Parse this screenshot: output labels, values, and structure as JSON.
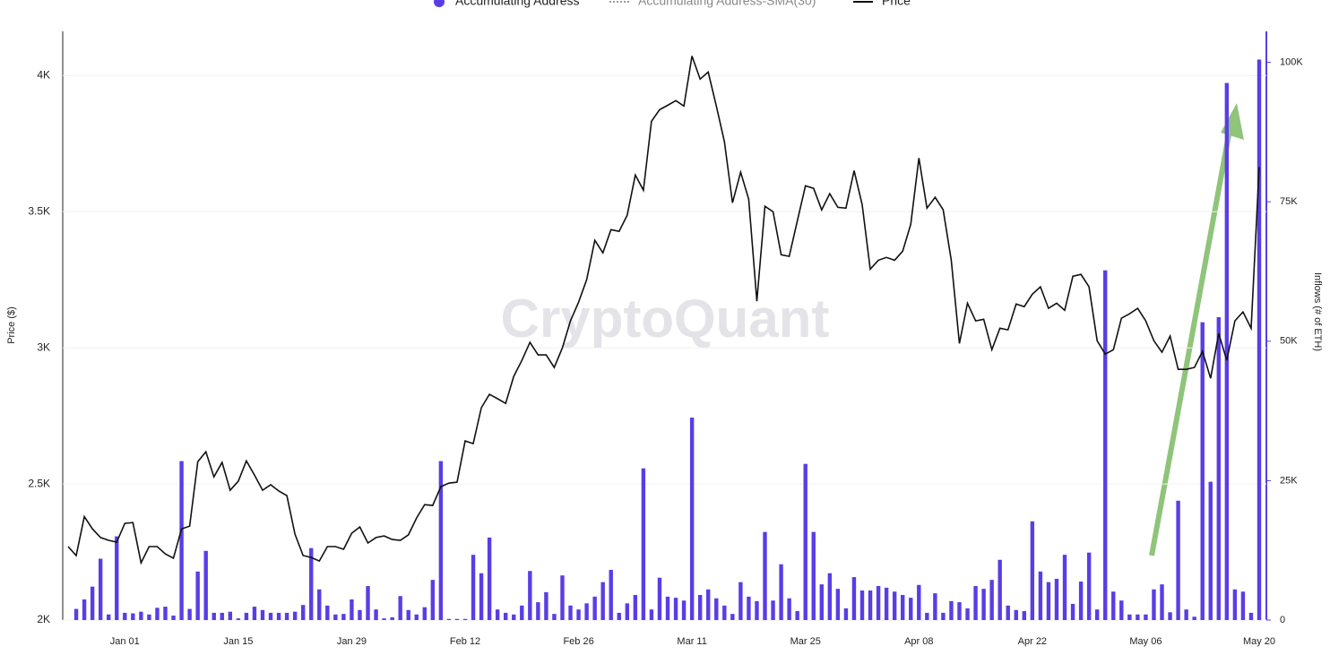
{
  "chart_data": {
    "type": "combo",
    "watermark": "CryptoQuant",
    "y_label": "Price ($)",
    "y2_label": "Inflows (# of ETH)",
    "categories": [
      null,
      null,
      null,
      null,
      null,
      null,
      null,
      "Jan 01",
      null,
      null,
      null,
      null,
      null,
      null,
      null,
      null,
      null,
      null,
      null,
      null,
      null,
      "Jan 15",
      null,
      null,
      null,
      null,
      null,
      null,
      null,
      null,
      null,
      null,
      null,
      null,
      null,
      "Jan 29",
      null,
      null,
      null,
      null,
      null,
      null,
      null,
      null,
      null,
      null,
      null,
      null,
      null,
      "Feb 12",
      null,
      null,
      null,
      null,
      null,
      null,
      null,
      null,
      null,
      null,
      null,
      null,
      null,
      "Feb 26",
      null,
      null,
      null,
      null,
      null,
      null,
      null,
      null,
      null,
      null,
      null,
      null,
      null,
      "Mar 11",
      null,
      null,
      null,
      null,
      null,
      null,
      null,
      null,
      null,
      null,
      null,
      null,
      null,
      "Mar 25",
      null,
      null,
      null,
      null,
      null,
      null,
      null,
      null,
      null,
      null,
      null,
      null,
      null,
      "Apr 08",
      null,
      null,
      null,
      null,
      null,
      null,
      null,
      null,
      null,
      null,
      null,
      null,
      null,
      "Apr 22",
      null,
      null,
      null,
      null,
      null,
      null,
      null,
      null,
      null,
      null,
      null,
      null,
      null,
      "May 06",
      null,
      null,
      null,
      null,
      null,
      null,
      null,
      null,
      null,
      null,
      null,
      null,
      null,
      "May 20"
    ],
    "series": [
      {
        "name": "Accumulating Address",
        "type": "bar",
        "axis": "y2",
        "color": "#5a3de6",
        "values": [
          null,
          2000,
          3700,
          6000,
          11000,
          1000,
          15000,
          1300,
          1200,
          1500,
          1000,
          2200,
          2400,
          800,
          28500,
          2000,
          8700,
          12400,
          1300,
          1300,
          1500,
          300,
          1300,
          2400,
          1800,
          1300,
          1300,
          1300,
          1500,
          2700,
          12900,
          5500,
          2600,
          1000,
          1100,
          3700,
          1800,
          6100,
          1900,
          300,
          500,
          4300,
          1800,
          1000,
          2300,
          7200,
          28500,
          200,
          200,
          200,
          11700,
          8400,
          14800,
          1900,
          1300,
          1000,
          2600,
          8800,
          3200,
          5000,
          1100,
          8000,
          2600,
          1900,
          3000,
          4200,
          6800,
          9000,
          1300,
          3000,
          4500,
          27200,
          1900,
          7600,
          4200,
          4000,
          3500,
          36300,
          4500,
          5500,
          3900,
          2600,
          1100,
          6800,
          4200,
          3400,
          15800,
          3500,
          10000,
          3900,
          1600,
          28000,
          15800,
          6400,
          8400,
          5600,
          2100,
          7700,
          5300,
          5300,
          6100,
          5800,
          5100,
          4500,
          4000,
          6300,
          1300,
          4800,
          1300,
          3400,
          3200,
          2100,
          6100,
          5600,
          7200,
          10800,
          2600,
          1800,
          1600,
          17700,
          8700,
          6800,
          7400,
          11700,
          2900,
          6900,
          12100,
          1900,
          62700,
          5100,
          3500,
          1000,
          1000,
          1000,
          5500,
          6400,
          1400,
          21400,
          1900,
          600,
          53400,
          24800,
          54300,
          96300,
          5500,
          5100,
          1300,
          100500
        ]
      },
      {
        "name": "Accumulating Address-SMA(30)",
        "type": "legend",
        "color": "#999999"
      },
      {
        "name": "Price",
        "type": "line",
        "axis": "y",
        "color": "#111111",
        "values": [
          2270,
          2237,
          2380,
          2335,
          2303,
          2293,
          2286,
          2355,
          2358,
          2210,
          2270,
          2270,
          2243,
          2227,
          2335,
          2345,
          2582,
          2618,
          2526,
          2579,
          2477,
          2510,
          2585,
          2533,
          2477,
          2497,
          2474,
          2457,
          2316,
          2237,
          2230,
          2217,
          2270,
          2270,
          2260,
          2319,
          2342,
          2283,
          2303,
          2309,
          2296,
          2293,
          2313,
          2375,
          2424,
          2421,
          2490,
          2503,
          2507,
          2658,
          2648,
          2780,
          2829,
          2813,
          2796,
          2895,
          2954,
          3020,
          2974,
          2974,
          2928,
          3000,
          3099,
          3168,
          3250,
          3395,
          3349,
          3434,
          3428,
          3487,
          3635,
          3579,
          3832,
          3875,
          3891,
          3908,
          3888,
          4072,
          3987,
          4013,
          3888,
          3757,
          3533,
          3645,
          3546,
          3171,
          3520,
          3500,
          3342,
          3336,
          3467,
          3595,
          3586,
          3507,
          3566,
          3516,
          3513,
          3651,
          3526,
          3289,
          3322,
          3332,
          3322,
          3355,
          3454,
          3697,
          3513,
          3553,
          3507,
          3322,
          3016,
          3164,
          3099,
          3105,
          2993,
          3072,
          3066,
          3161,
          3151,
          3197,
          3224,
          3145,
          3164,
          3138,
          3263,
          3270,
          3224,
          3026,
          2977,
          2993,
          3109,
          3125,
          3145,
          3099,
          3026,
          2984,
          3043,
          2921,
          2921,
          2928,
          2987,
          2888,
          3053,
          2954,
          3099,
          3132,
          3072,
          3664
        ]
      }
    ],
    "ylim": [
      2000,
      4100
    ],
    "yticks": [
      {
        "value": 2000,
        "label": "2K"
      },
      {
        "value": 2500,
        "label": "2.5K"
      },
      {
        "value": 3000,
        "label": "3K"
      },
      {
        "value": 3500,
        "label": "3.5K"
      },
      {
        "value": 4000,
        "label": "4K"
      }
    ],
    "y2lim": [
      0,
      102500
    ],
    "y2ticks": [
      0,
      {
        "value": 25000,
        "label": "25K"
      },
      {
        "value": 50000,
        "label": "50K"
      },
      {
        "value": 75000,
        "label": "75K"
      },
      {
        "value": 100000,
        "label": "100K"
      }
    ],
    "grid": true
  }
}
